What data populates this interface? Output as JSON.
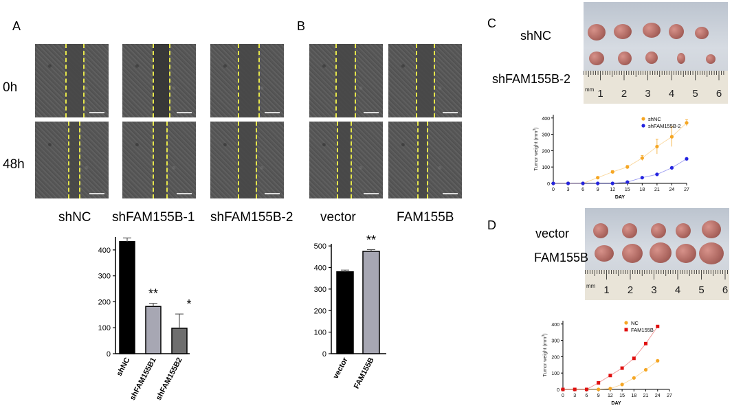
{
  "panels": {
    "A": "A",
    "B": "B",
    "C": "C",
    "D": "D"
  },
  "row_labels": {
    "t0": "0h",
    "t48": "48h"
  },
  "col_labels": {
    "a1": "shNC",
    "a2": "shFAM155B-1",
    "a3": "shFAM155B-2",
    "b1": "vector",
    "b2": "FAM155B"
  },
  "photo_labels": {
    "c_top": "shNC",
    "c_bottom": "shFAM155B-2",
    "d_top": "vector",
    "d_bottom": "FAM155B"
  },
  "ruler": {
    "unit_c": "mm",
    "unit_d": "mm",
    "numbers_c": [
      "1",
      "2",
      "3",
      "4",
      "5",
      "6"
    ],
    "numbers_d": [
      "1",
      "2",
      "3",
      "4",
      "5",
      "6"
    ]
  },
  "chart_data": [
    {
      "id": "A-bar",
      "type": "bar",
      "categories": [
        "shNC",
        "shFAM155B1",
        "shFAM155B2"
      ],
      "values": [
        432,
        182,
        98
      ],
      "errors": [
        14,
        12,
        55
      ],
      "colors": [
        "#000000",
        "#a7a7b3",
        "#6e6e6e"
      ],
      "significance": [
        "",
        "**",
        "*"
      ],
      "yticks": [
        "0",
        "100",
        "200",
        "300",
        "400"
      ],
      "ylim": [
        0,
        450
      ],
      "xlabel": "",
      "ylabel": ""
    },
    {
      "id": "B-bar",
      "type": "bar",
      "categories": [
        "vector",
        "FAM155B"
      ],
      "values": [
        380,
        475
      ],
      "errors": [
        8,
        8
      ],
      "colors": [
        "#000000",
        "#a7a7b3"
      ],
      "significance": [
        "",
        "**"
      ],
      "yticks": [
        "0",
        "100",
        "200",
        "300",
        "400",
        "500"
      ],
      "ylim": [
        0,
        510
      ],
      "xlabel": "",
      "ylabel": ""
    },
    {
      "id": "C-line",
      "type": "line",
      "x": [
        0,
        3,
        6,
        9,
        12,
        15,
        18,
        21,
        24,
        27
      ],
      "xticks": [
        "0",
        "3",
        "6",
        "9",
        "12",
        "15",
        "18",
        "21",
        "24",
        "27"
      ],
      "yticks": [
        "0",
        "100",
        "200",
        "300",
        "400"
      ],
      "xlabel": "DAY",
      "ylabel": "Tumor weight (mm",
      "ylabel_sup": "3",
      "ylabel_close": ")",
      "xlim": [
        0,
        27
      ],
      "ylim": [
        0,
        420
      ],
      "legend_position": "top-right",
      "series": [
        {
          "name": "shNC",
          "color": "#f5a623",
          "marker": "circle",
          "values": [
            0,
            0,
            0,
            35,
            70,
            100,
            155,
            225,
            285,
            370
          ],
          "errors": [
            0,
            0,
            0,
            5,
            8,
            10,
            15,
            45,
            60,
            20
          ]
        },
        {
          "name": "shFAM155B-2",
          "color": "#2424e0",
          "marker": "circle",
          "values": [
            0,
            0,
            0,
            0,
            0,
            8,
            35,
            55,
            95,
            150
          ],
          "errors": [
            0,
            0,
            0,
            0,
            0,
            2,
            4,
            5,
            6,
            5
          ]
        }
      ]
    },
    {
      "id": "D-line",
      "type": "line",
      "x": [
        0,
        3,
        6,
        9,
        12,
        15,
        18,
        21,
        24
      ],
      "xticks": [
        "0",
        "3",
        "6",
        "9",
        "12",
        "15",
        "18",
        "21",
        "24",
        "27"
      ],
      "yticks": [
        "0",
        "100",
        "200",
        "300",
        "400"
      ],
      "xlabel": "DAY",
      "ylabel": "Tumor weight (mm",
      "ylabel_sup": "3",
      "ylabel_close": ")",
      "xlim": [
        0,
        27
      ],
      "ylim": [
        0,
        420
      ],
      "legend_position": "top-right",
      "series": [
        {
          "name": "NC",
          "color": "#f5a623",
          "marker": "circle",
          "values": [
            0,
            0,
            0,
            0,
            5,
            30,
            70,
            120,
            175
          ]
        },
        {
          "name": "FAM155B",
          "color": "#e01010",
          "marker": "square",
          "values": [
            0,
            0,
            0,
            40,
            85,
            130,
            190,
            280,
            385
          ]
        }
      ]
    }
  ]
}
